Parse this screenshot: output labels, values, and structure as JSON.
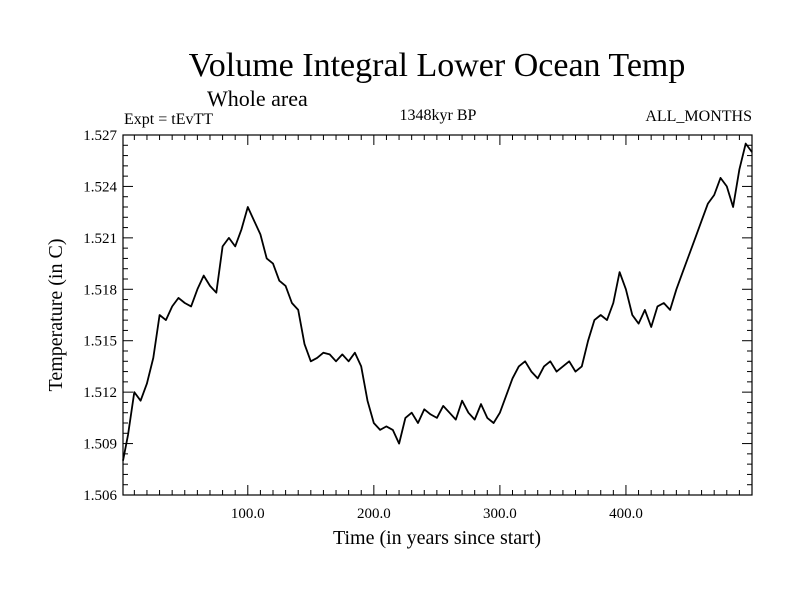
{
  "chart_data": {
    "type": "line",
    "title": "Volume Integral Lower Ocean Temp",
    "subtitle": "Whole area",
    "expt_label": "Expt = tEvTT",
    "period_label": "1348kyr BP",
    "months_label": "ALL_MONTHS",
    "xlabel": "Time (in years since start)",
    "ylabel": "Temperature (in C)",
    "xlim": [
      1,
      500
    ],
    "ylim": [
      1.506,
      1.527
    ],
    "x_ticks": [
      100,
      200,
      300,
      400
    ],
    "x_tick_labels": [
      "100.0",
      "200.0",
      "300.0",
      "400.0"
    ],
    "y_ticks": [
      1.506,
      1.509,
      1.512,
      1.515,
      1.518,
      1.521,
      1.524,
      1.527
    ],
    "y_tick_labels": [
      "1.506",
      "1.509",
      "1.512",
      "1.515",
      "1.518",
      "1.521",
      "1.524",
      "1.527"
    ],
    "grid": false,
    "series": [
      {
        "name": "tEvTT",
        "x": [
          1,
          5,
          10,
          15,
          20,
          25,
          30,
          35,
          40,
          45,
          50,
          55,
          60,
          65,
          70,
          75,
          80,
          85,
          90,
          95,
          100,
          105,
          110,
          115,
          120,
          125,
          130,
          135,
          140,
          145,
          150,
          155,
          160,
          165,
          170,
          175,
          180,
          185,
          190,
          195,
          200,
          205,
          210,
          215,
          220,
          225,
          230,
          235,
          240,
          245,
          250,
          255,
          260,
          265,
          270,
          275,
          280,
          285,
          290,
          295,
          300,
          305,
          310,
          315,
          320,
          325,
          330,
          335,
          340,
          345,
          350,
          355,
          360,
          365,
          370,
          375,
          380,
          385,
          390,
          395,
          400,
          405,
          410,
          415,
          420,
          425,
          430,
          435,
          440,
          445,
          450,
          455,
          460,
          465,
          470,
          475,
          480,
          485,
          490,
          495,
          500
        ],
        "values": [
          1.508,
          1.5095,
          1.512,
          1.5115,
          1.5125,
          1.514,
          1.5165,
          1.5162,
          1.517,
          1.5175,
          1.5172,
          1.517,
          1.518,
          1.5188,
          1.5182,
          1.5178,
          1.5205,
          1.521,
          1.5205,
          1.5215,
          1.5228,
          1.522,
          1.5212,
          1.5198,
          1.5195,
          1.5185,
          1.5182,
          1.5172,
          1.5168,
          1.5148,
          1.5138,
          1.514,
          1.5143,
          1.5142,
          1.5138,
          1.5142,
          1.5138,
          1.5143,
          1.5135,
          1.5115,
          1.5102,
          1.5098,
          1.51,
          1.5098,
          1.509,
          1.5105,
          1.5108,
          1.5102,
          1.511,
          1.5107,
          1.5105,
          1.5112,
          1.5108,
          1.5104,
          1.5115,
          1.5108,
          1.5104,
          1.5113,
          1.5105,
          1.5102,
          1.5108,
          1.5118,
          1.5128,
          1.5135,
          1.5138,
          1.5132,
          1.5128,
          1.5135,
          1.5138,
          1.5132,
          1.5135,
          1.5138,
          1.5132,
          1.5135,
          1.515,
          1.5162,
          1.5165,
          1.5162,
          1.5172,
          1.519,
          1.518,
          1.5165,
          1.516,
          1.5168,
          1.5158,
          1.517,
          1.5172,
          1.5168,
          1.518,
          1.519,
          1.52,
          1.521,
          1.522,
          1.523,
          1.5235,
          1.5245,
          1.524,
          1.5228,
          1.525,
          1.5265,
          1.526
        ]
      }
    ]
  }
}
